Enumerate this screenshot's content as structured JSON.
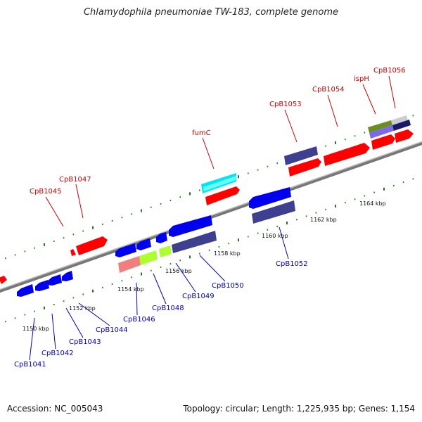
{
  "title": "Chlamydophila pneumoniae TW-183, complete genome",
  "footer": {
    "accession": "Accession: NC_005043",
    "summary": "Topology: circular; Length: 1,225,935 bp; Genes: 1,154"
  },
  "colors": {
    "backbone": "#888888",
    "tick": "#1a7a1a",
    "forward_label": "#cc0000",
    "reverse_label": "#0000bb"
  },
  "scale_labels": [
    "1150 kbp",
    "1152 kbp",
    "1154 kbp",
    "1156 kbp",
    "1158 kbp",
    "1160 kbp",
    "1162 kbp",
    "1164 kbp"
  ],
  "forward_labels": [
    "CpB1045",
    "CpB1047",
    "fumC",
    "CpB1053",
    "CpB1054",
    "ispH",
    "CpB1056"
  ],
  "reverse_labels": [
    "CpB1041",
    "CpB1042",
    "CpB1043",
    "CpB1044",
    "CpB1046",
    "CpB1048",
    "CpB1049",
    "CpB1050",
    "CpB1052"
  ]
}
